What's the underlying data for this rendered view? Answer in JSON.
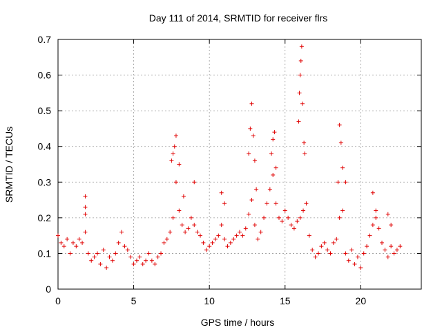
{
  "chart_data": {
    "type": "scatter",
    "title": "Day 111 of 2014, SRMTID for receiver flrs",
    "xlabel": "GPS time / hours",
    "ylabel": "SRMTID / TECUs",
    "xlim": [
      0,
      24
    ],
    "ylim": [
      0,
      0.7
    ],
    "xticks": [
      0,
      5,
      10,
      15,
      20
    ],
    "yticks": [
      0,
      0.1,
      0.2,
      0.3,
      0.4,
      0.5,
      0.6,
      0.7
    ],
    "xtick_labels": [
      "0",
      "5",
      "10",
      "15",
      "20"
    ],
    "ytick_labels": [
      "0",
      "0.1",
      "0.2",
      "0.3",
      "0.4",
      "0.5",
      "0.6",
      "0.7"
    ],
    "grid": true,
    "marker": "+",
    "series": [
      {
        "name": "SRMTID",
        "color": "#e00000",
        "x": [
          0.0,
          0.2,
          0.4,
          0.6,
          0.8,
          1.0,
          1.2,
          1.4,
          1.6,
          1.8,
          2.0,
          2.2,
          2.4,
          2.6,
          2.8,
          3.0,
          3.2,
          3.4,
          3.6,
          3.8,
          4.0,
          4.2,
          4.4,
          4.6,
          4.8,
          5.0,
          5.2,
          5.4,
          5.6,
          5.8,
          6.0,
          6.2,
          6.4,
          6.6,
          6.8,
          7.0,
          7.2,
          7.4,
          7.6,
          7.8,
          8.0,
          8.2,
          8.4,
          8.6,
          8.8,
          9.0,
          9.2,
          9.4,
          9.6,
          9.8,
          10.0,
          10.2,
          10.4,
          10.6,
          10.8,
          11.0,
          11.2,
          11.4,
          11.6,
          11.8,
          12.0,
          12.2,
          12.4,
          12.6,
          12.8,
          13.0,
          13.2,
          13.4,
          13.6,
          13.8,
          14.0,
          14.2,
          14.4,
          14.6,
          14.8,
          15.0,
          15.2,
          15.4,
          15.6,
          15.8,
          16.0,
          16.2,
          16.4,
          16.6,
          16.8,
          17.0,
          17.2,
          17.4,
          17.6,
          17.8,
          18.0,
          18.2,
          18.4,
          18.6,
          18.8,
          19.0,
          19.2,
          19.4,
          19.6,
          19.8,
          20.0,
          20.2,
          20.4,
          20.6,
          20.8,
          21.0,
          21.2,
          21.4,
          21.6,
          21.8,
          22.0,
          22.2,
          22.4,
          22.6,
          1.8,
          1.8,
          1.8,
          7.5,
          7.6,
          7.7,
          7.8,
          8.0,
          8.3,
          9.0,
          10.8,
          11.0,
          12.6,
          12.7,
          12.8,
          12.9,
          13.0,
          13.1,
          14.1,
          14.2,
          14.3,
          14.4,
          15.9,
          15.95,
          16.0,
          16.05,
          16.1,
          16.15,
          16.25,
          16.3,
          18.5,
          18.6,
          18.7,
          18.8,
          19.0,
          20.8,
          21.0,
          21.8,
          22.0
        ],
        "y": [
          0.15,
          0.13,
          0.12,
          0.14,
          0.1,
          0.13,
          0.12,
          0.14,
          0.13,
          0.16,
          0.1,
          0.08,
          0.09,
          0.1,
          0.07,
          0.11,
          0.06,
          0.09,
          0.08,
          0.1,
          0.13,
          0.16,
          0.12,
          0.11,
          0.09,
          0.07,
          0.08,
          0.09,
          0.07,
          0.08,
          0.1,
          0.08,
          0.07,
          0.09,
          0.1,
          0.13,
          0.14,
          0.16,
          0.2,
          0.3,
          0.22,
          0.18,
          0.16,
          0.17,
          0.2,
          0.18,
          0.16,
          0.15,
          0.13,
          0.11,
          0.12,
          0.13,
          0.14,
          0.15,
          0.18,
          0.14,
          0.12,
          0.13,
          0.14,
          0.15,
          0.16,
          0.15,
          0.17,
          0.21,
          0.25,
          0.18,
          0.14,
          0.16,
          0.2,
          0.24,
          0.28,
          0.32,
          0.24,
          0.2,
          0.19,
          0.22,
          0.2,
          0.18,
          0.17,
          0.19,
          0.2,
          0.22,
          0.24,
          0.15,
          0.11,
          0.09,
          0.1,
          0.12,
          0.13,
          0.11,
          0.1,
          0.13,
          0.14,
          0.2,
          0.22,
          0.1,
          0.08,
          0.11,
          0.07,
          0.09,
          0.06,
          0.1,
          0.12,
          0.15,
          0.18,
          0.2,
          0.17,
          0.13,
          0.11,
          0.09,
          0.12,
          0.1,
          0.11,
          0.12,
          0.26,
          0.23,
          0.21,
          0.36,
          0.38,
          0.4,
          0.43,
          0.35,
          0.26,
          0.3,
          0.27,
          0.24,
          0.38,
          0.45,
          0.52,
          0.43,
          0.36,
          0.28,
          0.38,
          0.42,
          0.44,
          0.34,
          0.47,
          0.55,
          0.6,
          0.64,
          0.68,
          0.52,
          0.41,
          0.38,
          0.3,
          0.46,
          0.41,
          0.34,
          0.3,
          0.27,
          0.22,
          0.21,
          0.18
        ]
      }
    ]
  }
}
